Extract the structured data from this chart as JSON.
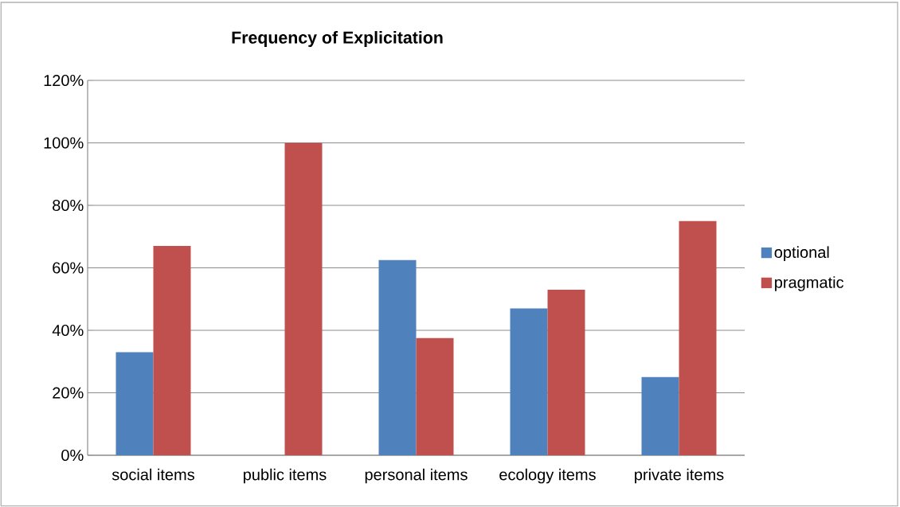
{
  "chart_data": {
    "type": "bar",
    "title": "Frequency of Explicitation",
    "categories": [
      "social items",
      "public items",
      "personal items",
      "ecology items",
      "private items"
    ],
    "series": [
      {
        "name": "optional",
        "color": "#4f81bd",
        "values": [
          33,
          0,
          62.5,
          47,
          25
        ]
      },
      {
        "name": "pragmatic",
        "color": "#c0504d",
        "values": [
          67,
          100,
          37.5,
          53,
          75
        ]
      }
    ],
    "ylim": [
      0,
      120
    ],
    "yticks": [
      {
        "value": 0,
        "label": "0%"
      },
      {
        "value": 20,
        "label": "20%"
      },
      {
        "value": 40,
        "label": "40%"
      },
      {
        "value": 60,
        "label": "60%"
      },
      {
        "value": 80,
        "label": "80%"
      },
      {
        "value": 100,
        "label": "100%"
      },
      {
        "value": 120,
        "label": "120%"
      }
    ],
    "grid": "y",
    "legend": "right"
  }
}
